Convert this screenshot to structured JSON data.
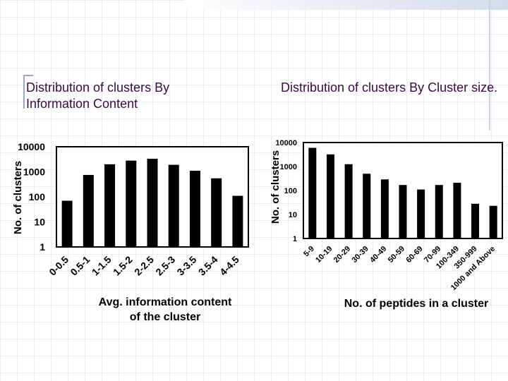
{
  "slide": {
    "title_left": "Distribution of clusters By Information Content",
    "title_right": "Distribution of clusters By Cluster size."
  },
  "colors": {
    "title": "#3a0a42",
    "bar": "#000000",
    "plot_bg": "#ffffff"
  },
  "chart_data": [
    {
      "type": "bar",
      "scale": "log",
      "title": "Distribution of clusters By Information Content",
      "xlabel": "Avg. information content of the cluster",
      "ylabel": "No. of clusters",
      "ylim": [
        1,
        10000
      ],
      "yticks": [
        "1",
        "10",
        "100",
        "1000",
        "10000"
      ],
      "categories": [
        "0-0.5",
        "0.5-1",
        "1-1.5",
        "1.5-2",
        "2-2.5",
        "2.5-3",
        "3-3.5",
        "3.5-4",
        "4-4.5"
      ],
      "values": [
        70,
        750,
        2000,
        2800,
        3300,
        1900,
        1100,
        550,
        110
      ]
    },
    {
      "type": "bar",
      "scale": "log",
      "title": "Distribution of clusters By Cluster size.",
      "xlabel": "No. of peptides in a cluster",
      "ylabel": "No. of clusters",
      "ylim": [
        1,
        10000
      ],
      "yticks": [
        "1",
        "10",
        "100",
        "1000",
        "10000"
      ],
      "categories": [
        "5-9",
        "10-19",
        "20-29",
        "30-39",
        "40-49",
        "50-59",
        "60-69",
        "70-99",
        "100-349",
        "350-999",
        "1000 and Above"
      ],
      "values": [
        6000,
        3200,
        1250,
        500,
        290,
        170,
        110,
        170,
        210,
        28,
        23
      ]
    }
  ]
}
